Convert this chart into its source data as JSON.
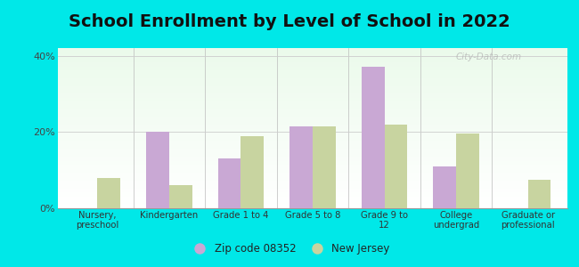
{
  "title": "School Enrollment by Level of School in 2022",
  "categories": [
    "Nursery,\npreschool",
    "Kindergarten",
    "Grade 1 to 4",
    "Grade 5 to 8",
    "Grade 9 to\n12",
    "College\nundergrad",
    "Graduate or\nprofessional"
  ],
  "zip_values": [
    0,
    20,
    13,
    21.5,
    37,
    11,
    0
  ],
  "nj_values": [
    8,
    6,
    19,
    21.5,
    22,
    19.5,
    7.5
  ],
  "zip_color": "#c9a8d4",
  "nj_color": "#c8d4a0",
  "background_outer": "#00e8e8",
  "ylim": [
    0,
    42
  ],
  "yticks": [
    0,
    20,
    40
  ],
  "ytick_labels": [
    "0%",
    "20%",
    "40%"
  ],
  "title_fontsize": 14,
  "legend_zip_label": "Zip code 08352",
  "legend_nj_label": "New Jersey",
  "bar_width": 0.32,
  "watermark": "City-Data.com"
}
